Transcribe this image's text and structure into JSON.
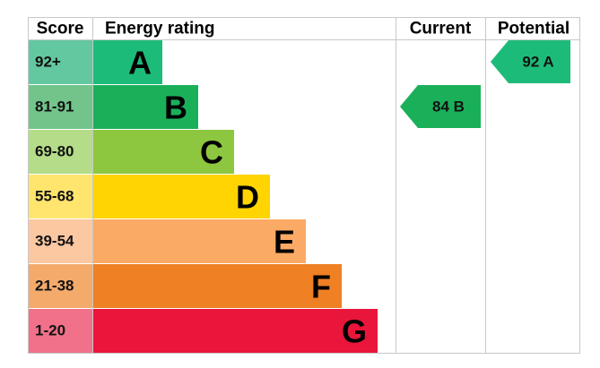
{
  "header": {
    "score": "Score",
    "rating": "Energy rating",
    "current": "Current",
    "potential": "Potential"
  },
  "bands": [
    {
      "score": "92+",
      "letter": "A",
      "color": "#1dbb7a",
      "score_color": "#63c7a0"
    },
    {
      "score": "81-91",
      "letter": "B",
      "color": "#1ab05a",
      "score_color": "#72c48a"
    },
    {
      "score": "69-80",
      "letter": "C",
      "color": "#8dc63f",
      "score_color": "#b5dc89"
    },
    {
      "score": "55-68",
      "letter": "D",
      "color": "#ffd400",
      "score_color": "#ffe46e"
    },
    {
      "score": "39-54",
      "letter": "E",
      "color": "#fbaa65",
      "score_color": "#fcc8a1"
    },
    {
      "score": "21-38",
      "letter": "F",
      "color": "#ef8023",
      "score_color": "#f4aa6b"
    },
    {
      "score": "1-20",
      "letter": "G",
      "color": "#e9153b",
      "score_color": "#f07189"
    }
  ],
  "current": {
    "label": "84 B",
    "color": "#1ab05a"
  },
  "potential": {
    "label": "92 A",
    "color": "#1dbb7a"
  }
}
